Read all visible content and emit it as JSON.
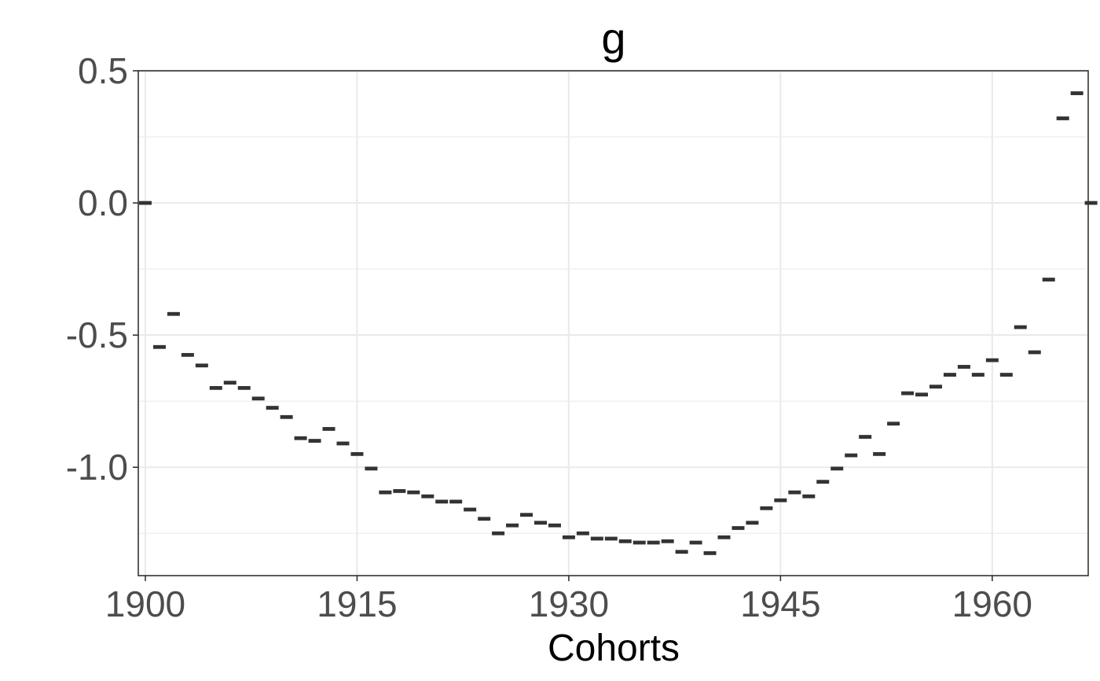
{
  "chart_data": {
    "type": "scatter",
    "marker": "dash",
    "title": "g",
    "xlabel": "Cohorts",
    "ylabel": "",
    "x_ticks": [
      1900,
      1915,
      1930,
      1945,
      1960
    ],
    "y_ticks": [
      0.5,
      0.0,
      -0.5,
      -1.0
    ],
    "y_tick_labels": [
      "0.5",
      "0.0",
      "-0.5",
      "-1.0"
    ],
    "xlim": [
      1899.5,
      1966.8
    ],
    "ylim": [
      -1.41,
      0.5
    ],
    "grid": true,
    "colors": {
      "marker": "#333333",
      "grid": "#ebebeb",
      "panel_border": "#333333",
      "tick_text": "#4d4d4d"
    },
    "x": [
      1900,
      1901,
      1902,
      1903,
      1904,
      1905,
      1906,
      1907,
      1908,
      1909,
      1910,
      1911,
      1912,
      1913,
      1914,
      1915,
      1916,
      1917,
      1918,
      1919,
      1920,
      1921,
      1922,
      1923,
      1924,
      1925,
      1926,
      1927,
      1928,
      1929,
      1930,
      1931,
      1932,
      1933,
      1934,
      1935,
      1936,
      1937,
      1938,
      1939,
      1940,
      1941,
      1942,
      1943,
      1944,
      1945,
      1946,
      1947,
      1948,
      1949,
      1950,
      1951,
      1952,
      1953,
      1954,
      1955,
      1956,
      1957,
      1958,
      1959,
      1960,
      1961,
      1962,
      1963,
      1964,
      1965,
      1966,
      1967
    ],
    "y": [
      0.0,
      -0.545,
      -0.42,
      -0.575,
      -0.615,
      -0.7,
      -0.68,
      -0.7,
      -0.74,
      -0.775,
      -0.81,
      -0.89,
      -0.9,
      -0.855,
      -0.91,
      -0.95,
      -1.005,
      -1.095,
      -1.09,
      -1.095,
      -1.11,
      -1.13,
      -1.13,
      -1.16,
      -1.195,
      -1.25,
      -1.22,
      -1.18,
      -1.21,
      -1.22,
      -1.265,
      -1.25,
      -1.27,
      -1.27,
      -1.28,
      -1.285,
      -1.285,
      -1.28,
      -1.32,
      -1.285,
      -1.325,
      -1.265,
      -1.23,
      -1.21,
      -1.155,
      -1.125,
      -1.095,
      -1.11,
      -1.055,
      -1.005,
      -0.955,
      -0.885,
      -0.95,
      -0.835,
      -0.72,
      -0.725,
      -0.695,
      -0.65,
      -0.62,
      -0.65,
      -0.595,
      -0.65,
      -0.47,
      -0.565,
      -0.29,
      0.32,
      0.415,
      0.0
    ]
  }
}
